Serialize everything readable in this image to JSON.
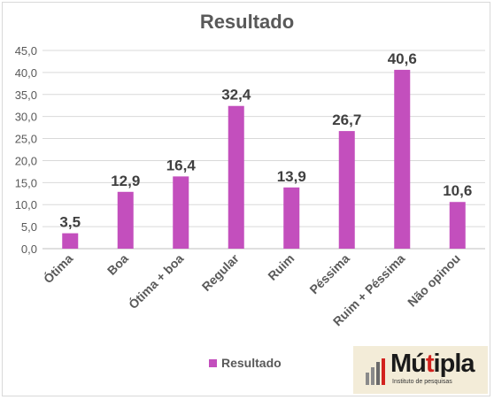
{
  "chart_data": {
    "type": "bar",
    "title": "Resultado",
    "categories": [
      "Ótima",
      "Boa",
      "Ótima + boa",
      "Regular",
      "Ruim",
      "Péssima",
      "Ruim + Péssima",
      "Não opinou"
    ],
    "series": [
      {
        "name": "Resultado",
        "values": [
          3.5,
          12.9,
          16.4,
          32.4,
          13.9,
          26.7,
          40.6,
          10.6
        ]
      }
    ],
    "data_labels": [
      "3,5",
      "12,9",
      "16,4",
      "32,4",
      "13,9",
      "26,7",
      "40,6",
      "10,6"
    ],
    "y_ticks": [
      "0,0",
      "5,0",
      "10,0",
      "15,0",
      "20,0",
      "25,0",
      "30,0",
      "35,0",
      "40,0",
      "45,0"
    ],
    "ylim": [
      0,
      45
    ],
    "y_step": 5,
    "grid": true,
    "legend": "bottom",
    "bar_color": "#c34fbd",
    "xlabel": "",
    "ylabel": ""
  },
  "logo": {
    "name_part1": "Mú",
    "name_accent": "t",
    "name_part2": "ipla",
    "tagline": "Instituto de pesquisas"
  }
}
